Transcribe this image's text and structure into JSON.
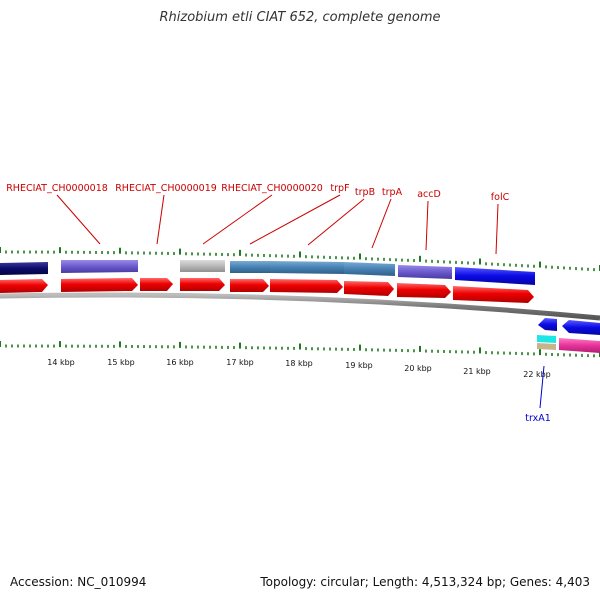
{
  "title": "Rhizobium etli CIAT 652, complete genome",
  "footer": {
    "accession": "Accession: NC_010994",
    "summary": "Topology: circular; Length: 4,513,324 bp; Genes: 4,403"
  },
  "colors": {
    "gene_label_top": "#cc0000",
    "gene_label_bottom": "#0000cc",
    "tick": "#1f7a1f",
    "backbone": "#888888",
    "cds_red": "#ee0000",
    "navy": "#0b0b6b",
    "purple": "#6a5acd",
    "gray": "#b8b8b8",
    "steel": "#4682b4",
    "blue": "#0a0ae6",
    "cyan": "#1ee6e6",
    "tan": "#c8b48c",
    "magenta": "#e6329b"
  },
  "scale_labels": [
    "14 kbp",
    "15 kbp",
    "16 kbp",
    "17 kbp",
    "18 kbp",
    "19 kbp",
    "20 kbp",
    "21 kbp",
    "22 kbp"
  ],
  "top_labels": [
    {
      "name": "RHECIAT_CH0000018"
    },
    {
      "name": "RHECIAT_CH0000019"
    },
    {
      "name": "RHECIAT_CH0000020"
    },
    {
      "name": "trpF"
    },
    {
      "name": "trpB"
    },
    {
      "name": "trpA"
    },
    {
      "name": "accD"
    },
    {
      "name": "folC"
    }
  ],
  "bottom_labels": [
    {
      "name": "trxA1"
    }
  ]
}
